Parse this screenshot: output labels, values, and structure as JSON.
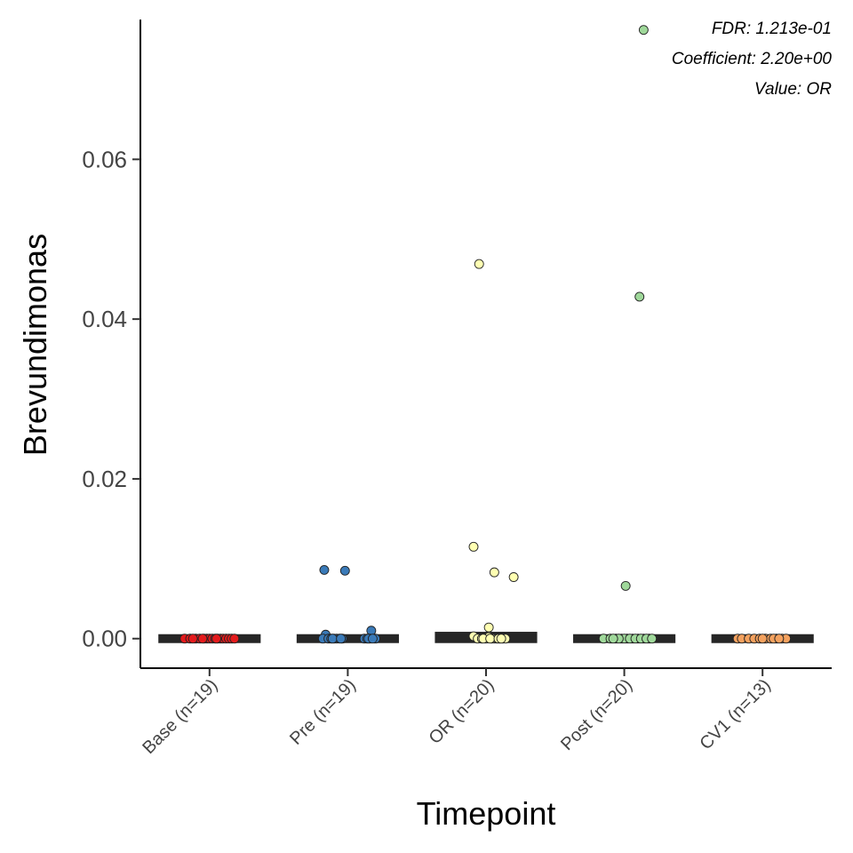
{
  "chart_data": {
    "type": "scatter",
    "subtype": "jittered strip plot with median bars",
    "xlabel": "Timepoint",
    "ylabel": "Brevundimonas",
    "ylim": [
      -0.0037,
      0.0775
    ],
    "yticks": [
      0,
      0.02,
      0.04,
      0.06
    ],
    "ytick_labels": [
      "0.00",
      "0.02",
      "0.04",
      "0.06"
    ],
    "grid": false,
    "legend": "none",
    "annotations": [
      "FDR: 1.213e-01",
      "Coefficient: 2.20e+00",
      "Value: OR"
    ],
    "categories": [
      "Base (n=19)",
      "Pre (n=19)",
      "OR (n=20)",
      "Post (n=20)",
      "CV1 (n=13)"
    ],
    "colors": [
      "#e31a1c",
      "#3a7ab8",
      "#ffffb2",
      "#9fd89a",
      "#f4a15e"
    ],
    "median_band": [
      [
        0,
        0
      ],
      [
        0,
        0
      ],
      [
        0,
        0.0003
      ],
      [
        0,
        0
      ],
      [
        0,
        0
      ]
    ],
    "points": [
      [
        {
          "x": -0.18,
          "y": 0
        },
        {
          "x": -0.14,
          "y": 0
        },
        {
          "x": -0.1,
          "y": 0
        },
        {
          "x": -0.07,
          "y": 0
        },
        {
          "x": -0.04,
          "y": 0
        },
        {
          "x": -0.02,
          "y": 0
        },
        {
          "x": 0.0,
          "y": 0
        },
        {
          "x": 0.02,
          "y": 0
        },
        {
          "x": 0.04,
          "y": 0
        },
        {
          "x": 0.06,
          "y": 0
        },
        {
          "x": 0.08,
          "y": 0
        },
        {
          "x": 0.1,
          "y": 0
        },
        {
          "x": 0.12,
          "y": 0
        },
        {
          "x": 0.14,
          "y": 0
        },
        {
          "x": 0.16,
          "y": 0
        },
        {
          "x": 0.18,
          "y": 0
        },
        {
          "x": -0.12,
          "y": 0
        },
        {
          "x": 0.05,
          "y": 0
        },
        {
          "x": -0.05,
          "y": 0
        }
      ],
      [
        {
          "x": -0.17,
          "y": 0.0086
        },
        {
          "x": -0.02,
          "y": 0.0085
        },
        {
          "x": -0.16,
          "y": 0.0005
        },
        {
          "x": 0.17,
          "y": 0.001
        },
        {
          "x": -0.18,
          "y": 0
        },
        {
          "x": -0.14,
          "y": 0
        },
        {
          "x": -0.12,
          "y": 0
        },
        {
          "x": -0.1,
          "y": 0
        },
        {
          "x": -0.08,
          "y": 0
        },
        {
          "x": -0.06,
          "y": 0
        },
        {
          "x": -0.04,
          "y": 0
        },
        {
          "x": 0.12,
          "y": 0
        },
        {
          "x": 0.14,
          "y": 0
        },
        {
          "x": 0.16,
          "y": 0
        },
        {
          "x": 0.2,
          "y": 0
        },
        {
          "x": -0.11,
          "y": 0
        },
        {
          "x": -0.05,
          "y": 0
        },
        {
          "x": 0.15,
          "y": 0
        },
        {
          "x": 0.18,
          "y": 0
        }
      ],
      [
        {
          "x": -0.05,
          "y": 0.0469
        },
        {
          "x": -0.09,
          "y": 0.0115
        },
        {
          "x": 0.06,
          "y": 0.0083
        },
        {
          "x": 0.2,
          "y": 0.0077
        },
        {
          "x": 0.02,
          "y": 0.0014
        },
        {
          "x": -0.09,
          "y": 0.0003
        },
        {
          "x": -0.06,
          "y": 0
        },
        {
          "x": -0.03,
          "y": 0
        },
        {
          "x": 0.0,
          "y": 0
        },
        {
          "x": 0.02,
          "y": 0.0002
        },
        {
          "x": 0.04,
          "y": 0
        },
        {
          "x": 0.06,
          "y": 0
        },
        {
          "x": 0.08,
          "y": 0
        },
        {
          "x": 0.1,
          "y": 0
        },
        {
          "x": 0.12,
          "y": 0
        },
        {
          "x": 0.14,
          "y": 0
        },
        {
          "x": -0.02,
          "y": 0
        },
        {
          "x": 0.03,
          "y": 0
        },
        {
          "x": 0.09,
          "y": 0
        },
        {
          "x": 0.11,
          "y": 0
        }
      ],
      [
        {
          "x": 0.11,
          "y": 0.0428
        },
        {
          "x": 0.01,
          "y": 0.0066
        },
        {
          "x": 0.14,
          "y": 0.0762
        },
        {
          "x": -0.15,
          "y": 0
        },
        {
          "x": -0.1,
          "y": 0
        },
        {
          "x": -0.06,
          "y": 0
        },
        {
          "x": -0.02,
          "y": 0
        },
        {
          "x": 0.02,
          "y": 0
        },
        {
          "x": 0.06,
          "y": 0
        },
        {
          "x": 0.1,
          "y": 0
        },
        {
          "x": 0.14,
          "y": 0
        },
        {
          "x": 0.18,
          "y": 0
        },
        {
          "x": 0.0,
          "y": 0
        },
        {
          "x": 0.04,
          "y": 0
        },
        {
          "x": 0.08,
          "y": 0
        },
        {
          "x": 0.12,
          "y": 0
        },
        {
          "x": 0.16,
          "y": 0
        },
        {
          "x": -0.04,
          "y": 0
        },
        {
          "x": -0.08,
          "y": 0
        },
        {
          "x": 0.2,
          "y": 0
        }
      ],
      [
        {
          "x": -0.18,
          "y": 0
        },
        {
          "x": -0.15,
          "y": 0
        },
        {
          "x": -0.1,
          "y": 0
        },
        {
          "x": -0.06,
          "y": 0
        },
        {
          "x": -0.02,
          "y": 0
        },
        {
          "x": 0.02,
          "y": 0
        },
        {
          "x": 0.06,
          "y": 0
        },
        {
          "x": 0.1,
          "y": 0
        },
        {
          "x": 0.14,
          "y": 0
        },
        {
          "x": 0.17,
          "y": 0
        },
        {
          "x": 0.0,
          "y": 0
        },
        {
          "x": 0.08,
          "y": 0
        },
        {
          "x": 0.12,
          "y": 0
        }
      ]
    ]
  }
}
